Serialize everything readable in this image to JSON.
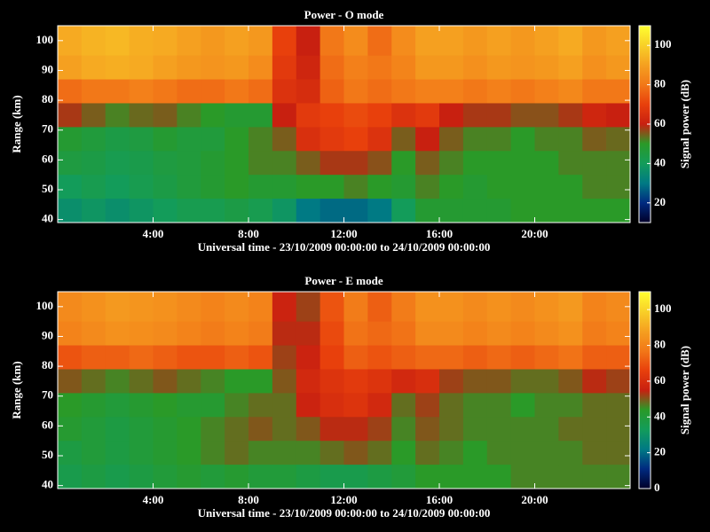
{
  "chart_data": [
    {
      "type": "heatmap",
      "title": "Power - O mode",
      "x_label": "Universal time - 23/10/2009 00:00:00 to 24/10/2009 00:00:00",
      "y_label": "Range (km)",
      "colorbar_label": "Signal power (dB)",
      "x": [
        0.5,
        1.5,
        2.5,
        3.5,
        4.5,
        5.5,
        6.5,
        7.5,
        8.5,
        9.5,
        10.5,
        11.5,
        12.5,
        13.5,
        14.5,
        15.5,
        16.5,
        17.5,
        18.5,
        19.5,
        20.5,
        21.5,
        22.5,
        23.5
      ],
      "y": [
        99,
        91,
        83,
        75,
        67,
        59,
        51,
        43
      ],
      "values": [
        [
          92,
          94,
          95,
          93,
          92,
          90,
          88,
          90,
          88,
          70,
          60,
          80,
          85,
          78,
          85,
          90,
          90,
          88,
          90,
          88,
          90,
          92,
          88,
          90
        ],
        [
          90,
          92,
          93,
          92,
          90,
          88,
          87,
          88,
          85,
          68,
          62,
          78,
          82,
          80,
          83,
          88,
          88,
          86,
          88,
          87,
          88,
          90,
          86,
          88
        ],
        [
          78,
          80,
          80,
          82,
          80,
          78,
          78,
          80,
          78,
          66,
          64,
          76,
          80,
          78,
          80,
          82,
          82,
          80,
          82,
          80,
          82,
          84,
          80,
          80
        ],
        [
          58,
          55,
          52,
          54,
          55,
          52,
          50,
          48,
          48,
          60,
          68,
          70,
          72,
          70,
          66,
          68,
          60,
          58,
          58,
          56,
          56,
          58,
          62,
          60
        ],
        [
          48,
          46,
          44,
          45,
          48,
          46,
          46,
          50,
          52,
          55,
          65,
          68,
          70,
          66,
          55,
          60,
          55,
          52,
          52,
          50,
          52,
          52,
          55,
          54
        ],
        [
          45,
          44,
          42,
          43,
          45,
          46,
          48,
          50,
          52,
          52,
          55,
          58,
          58,
          56,
          50,
          55,
          52,
          50,
          50,
          50,
          50,
          52,
          52,
          52
        ],
        [
          40,
          42,
          40,
          42,
          44,
          46,
          48,
          50,
          48,
          48,
          50,
          50,
          52,
          50,
          48,
          52,
          50,
          48,
          50,
          50,
          50,
          50,
          52,
          52
        ],
        [
          36,
          38,
          36,
          38,
          40,
          42,
          42,
          44,
          42,
          38,
          30,
          28,
          28,
          30,
          40,
          48,
          48,
          48,
          48,
          50,
          50,
          50,
          50,
          50
        ]
      ],
      "xlim": [
        0,
        24
      ],
      "xticks": [
        {
          "value": 4,
          "label": "4:00"
        },
        {
          "value": 8,
          "label": "8:00"
        },
        {
          "value": 12,
          "label": "12:00"
        },
        {
          "value": 16,
          "label": "16:00"
        },
        {
          "value": 20,
          "label": "20:00"
        }
      ],
      "ylim": [
        39,
        105
      ],
      "yticks": [
        40,
        50,
        60,
        70,
        80,
        90,
        100
      ],
      "clim": [
        10,
        110
      ],
      "cticks": [
        20,
        40,
        60,
        80,
        100
      ],
      "colormap": [
        "#000028",
        "#002a80",
        "#007a84",
        "#139c5a",
        "#2a9a28",
        "#c82010",
        "#e8400c",
        "#f27818",
        "#f5a020",
        "#f8d028",
        "#ffff30"
      ]
    },
    {
      "type": "heatmap",
      "title": "Power - E mode",
      "x_label": "Universal time - 23/10/2009 00:00:00 to 24/10/2009 00:00:00",
      "y_label": "Range (km)",
      "colorbar_label": "Signal power (dB)",
      "x": [
        0.5,
        1.5,
        2.5,
        3.5,
        4.5,
        5.5,
        6.5,
        7.5,
        8.5,
        9.5,
        10.5,
        11.5,
        12.5,
        13.5,
        14.5,
        15.5,
        16.5,
        17.5,
        18.5,
        19.5,
        20.5,
        21.5,
        22.5,
        23.5
      ],
      "y": [
        99,
        91,
        83,
        75,
        67,
        59,
        51,
        43
      ],
      "values": [
        [
          82,
          84,
          86,
          85,
          84,
          82,
          80,
          82,
          80,
          56,
          52,
          70,
          78,
          72,
          78,
          84,
          84,
          82,
          84,
          82,
          84,
          86,
          80,
          82
        ],
        [
          80,
          82,
          84,
          83,
          82,
          80,
          78,
          80,
          78,
          54,
          54,
          68,
          76,
          74,
          76,
          82,
          82,
          80,
          82,
          80,
          82,
          84,
          78,
          80
        ],
        [
          70,
          72,
          72,
          74,
          72,
          70,
          70,
          72,
          70,
          52,
          56,
          66,
          72,
          70,
          72,
          74,
          74,
          72,
          74,
          72,
          74,
          76,
          72,
          72
        ],
        [
          50,
          48,
          46,
          48,
          50,
          48,
          46,
          44,
          44,
          50,
          58,
          62,
          64,
          62,
          58,
          60,
          52,
          50,
          50,
          48,
          48,
          50,
          54,
          52
        ],
        [
          44,
          42,
          40,
          42,
          44,
          42,
          42,
          46,
          48,
          48,
          56,
          60,
          62,
          58,
          48,
          52,
          48,
          46,
          46,
          44,
          46,
          46,
          48,
          48
        ],
        [
          42,
          40,
          38,
          40,
          42,
          44,
          46,
          48,
          50,
          48,
          50,
          54,
          54,
          52,
          46,
          50,
          48,
          46,
          46,
          46,
          46,
          48,
          48,
          48
        ],
        [
          38,
          40,
          38,
          40,
          42,
          44,
          46,
          48,
          46,
          46,
          46,
          48,
          50,
          48,
          44,
          48,
          46,
          44,
          46,
          46,
          46,
          46,
          48,
          48
        ],
        [
          36,
          38,
          36,
          38,
          40,
          42,
          40,
          42,
          40,
          40,
          38,
          36,
          36,
          38,
          40,
          44,
          44,
          44,
          44,
          46,
          46,
          46,
          46,
          46
        ]
      ],
      "xlim": [
        0,
        24
      ],
      "xticks": [
        {
          "value": 4,
          "label": "4:00"
        },
        {
          "value": 8,
          "label": "8:00"
        },
        {
          "value": 12,
          "label": "12:00"
        },
        {
          "value": 16,
          "label": "16:00"
        },
        {
          "value": 20,
          "label": "20:00"
        }
      ],
      "ylim": [
        39,
        105
      ],
      "yticks": [
        40,
        50,
        60,
        70,
        80,
        90,
        100
      ],
      "clim": [
        0,
        110
      ],
      "cticks": [
        0,
        20,
        40,
        60,
        80,
        100
      ],
      "colormap": [
        "#000028",
        "#002a80",
        "#007a84",
        "#139c5a",
        "#2a9a28",
        "#c82010",
        "#e8400c",
        "#f27818",
        "#f5a020",
        "#f8d028",
        "#ffff30"
      ]
    }
  ]
}
